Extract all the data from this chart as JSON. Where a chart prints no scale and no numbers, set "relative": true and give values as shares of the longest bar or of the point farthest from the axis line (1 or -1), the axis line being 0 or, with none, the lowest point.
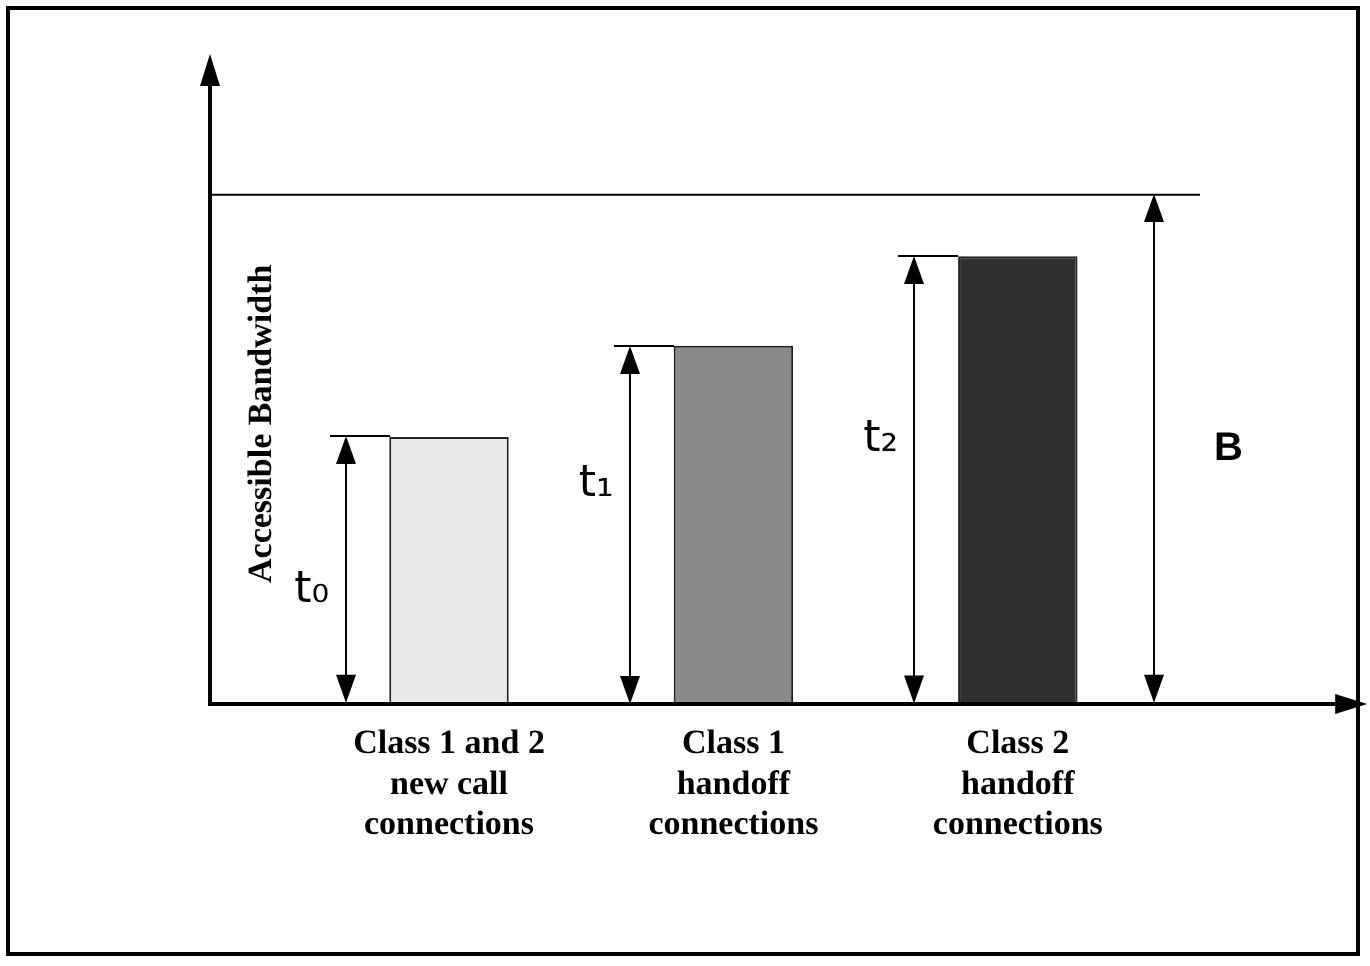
{
  "chart_data": {
    "type": "bar",
    "relative": true,
    "ylabel": "Accessible Bandwidth",
    "categories": [
      "Class 1 and 2 new call connections",
      "Class 1 handoff connections",
      "Class 2 handoff connections"
    ],
    "values": [
      0.596,
      0.8,
      1
    ],
    "colors": [
      "#e8e8e8",
      "#8a8a8a",
      "#303030"
    ],
    "ref_lines": [
      {
        "axis": "y",
        "value": 1.137,
        "label": "B"
      }
    ],
    "annotations": [
      "t₀",
      "t₁",
      "t₂"
    ],
    "grid": false,
    "legend": false
  }
}
